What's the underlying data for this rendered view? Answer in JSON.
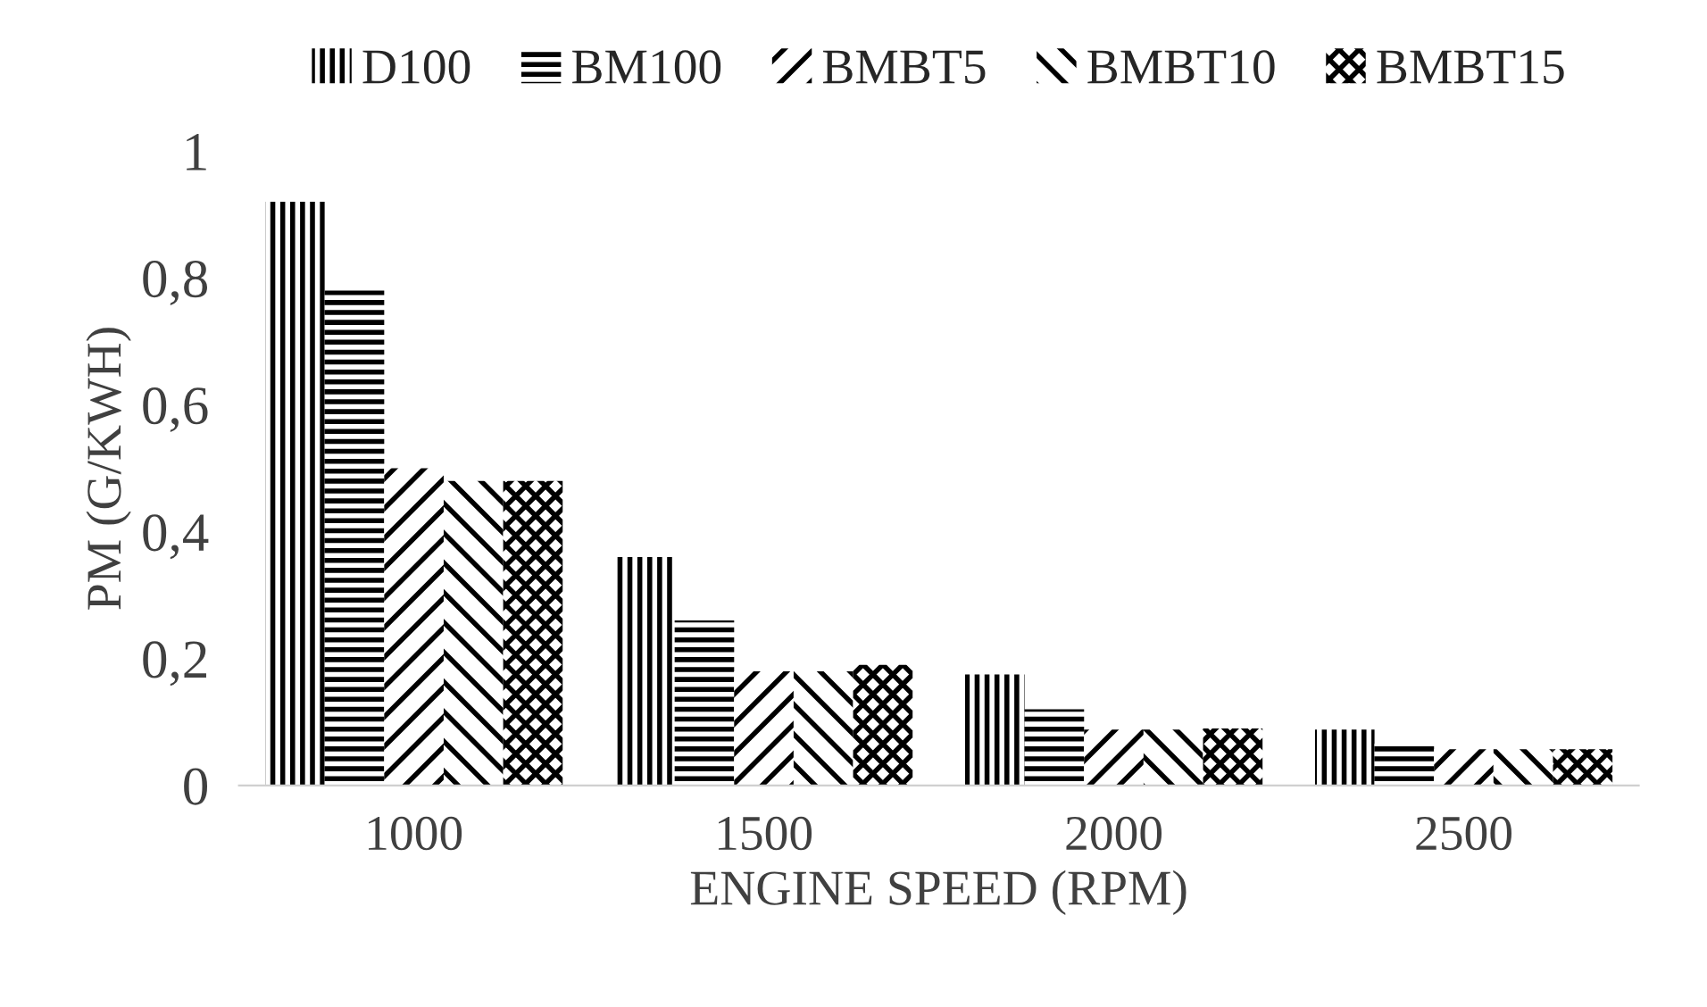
{
  "chart_data": {
    "type": "bar",
    "xlabel": "ENGINE SPEED (RPM)",
    "ylabel": "PM (G/KWH)",
    "categories": [
      "1000",
      "1500",
      "2000",
      "2500"
    ],
    "series": [
      {
        "name": "D100",
        "color": "#000000",
        "values": [
          0.92,
          0.36,
          0.175,
          0.088
        ]
      },
      {
        "name": "BM100",
        "color": "#000000",
        "values": [
          0.78,
          0.26,
          0.12,
          0.066
        ]
      },
      {
        "name": "BMBT5",
        "color": "#000000",
        "values": [
          0.5,
          0.18,
          0.088,
          0.057
        ]
      },
      {
        "name": "BMBT10",
        "color": "#000000",
        "values": [
          0.48,
          0.18,
          0.088,
          0.057
        ]
      },
      {
        "name": "BMBT15",
        "color": "#000000",
        "values": [
          0.48,
          0.19,
          0.09,
          0.057
        ]
      }
    ],
    "ylim": [
      0,
      1
    ],
    "yticks": [
      0,
      {
        "value": 0.2,
        "label": "0,2"
      },
      {
        "value": 0.4,
        "label": "0,4"
      },
      {
        "value": 0.6,
        "label": "0,6"
      },
      {
        "value": 0.8,
        "label": "0,8"
      },
      1
    ],
    "grid": false,
    "legend": "top"
  }
}
